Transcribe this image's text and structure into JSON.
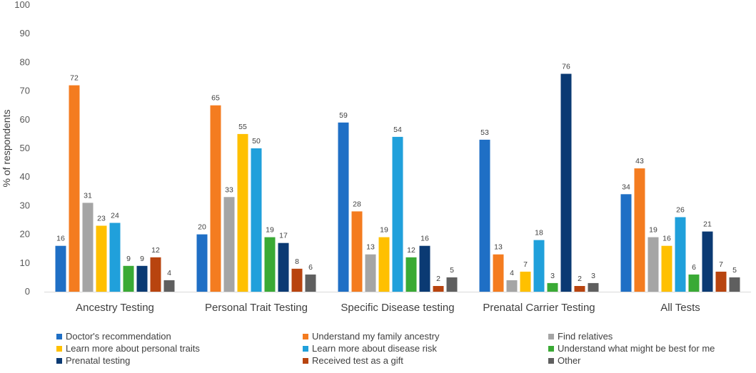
{
  "chart_data": {
    "type": "bar",
    "title": "",
    "xlabel": "",
    "ylabel": "% of respondents",
    "ylim": [
      0,
      100
    ],
    "yticks": [
      0,
      10,
      20,
      30,
      40,
      50,
      60,
      70,
      80,
      90,
      100
    ],
    "grid": false,
    "legend_position": "bottom",
    "categories": [
      "Ancestry Testing",
      "Personal Trait Testing",
      "Specific Disease testing",
      "Prenatal Carrier Testing",
      "All Tests"
    ],
    "series": [
      {
        "name": "Doctor's recommendation",
        "color": "#1f6fc5",
        "values": [
          16,
          20,
          59,
          53,
          34
        ]
      },
      {
        "name": "Understand my family ancestry",
        "color": "#f47c20",
        "values": [
          72,
          65,
          28,
          13,
          43
        ]
      },
      {
        "name": "Find relatives",
        "color": "#a5a5a5",
        "values": [
          31,
          33,
          13,
          4,
          19
        ]
      },
      {
        "name": "Learn more about personal traits",
        "color": "#ffc000",
        "values": [
          23,
          55,
          19,
          7,
          16
        ]
      },
      {
        "name": "Learn more about disease risk",
        "color": "#20a0db",
        "values": [
          24,
          50,
          54,
          18,
          26
        ]
      },
      {
        "name": "Understand what might be best for me",
        "color": "#3aaa35",
        "values": [
          9,
          19,
          12,
          3,
          6
        ]
      },
      {
        "name": "Prenatal testing",
        "color": "#0b3a73",
        "values": [
          9,
          17,
          16,
          76,
          21
        ]
      },
      {
        "name": "Received test as a gift",
        "color": "#b8440f",
        "values": [
          12,
          8,
          2,
          2,
          7
        ]
      },
      {
        "name": "Other",
        "color": "#5f5f5f",
        "values": [
          4,
          6,
          5,
          3,
          5
        ]
      }
    ]
  }
}
